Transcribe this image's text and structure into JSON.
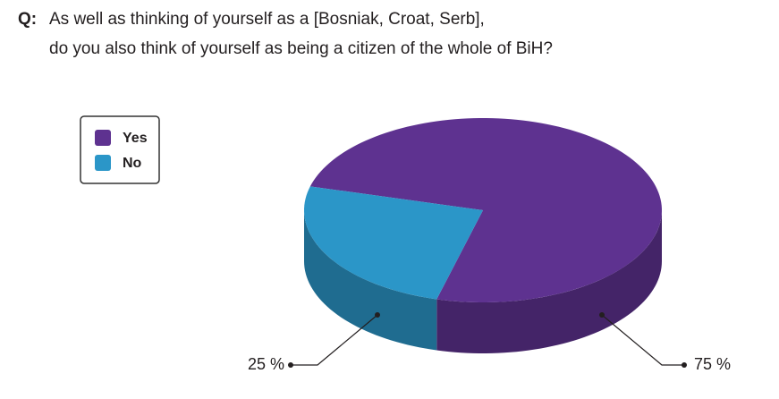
{
  "chart_data": {
    "type": "pie",
    "title_prefix": "Q:",
    "title": [
      "As well as thinking of yourself as a [Bosniak, Croat, Serb],",
      "do you also think of yourself as being a citizen of the whole of BiH?"
    ],
    "categories": [
      "Yes",
      "No"
    ],
    "values": [
      75,
      25
    ],
    "value_labels": [
      "75 %",
      "25 %"
    ],
    "colors": [
      "#5e3290",
      "#2b96c8"
    ],
    "legend": "upper left"
  }
}
